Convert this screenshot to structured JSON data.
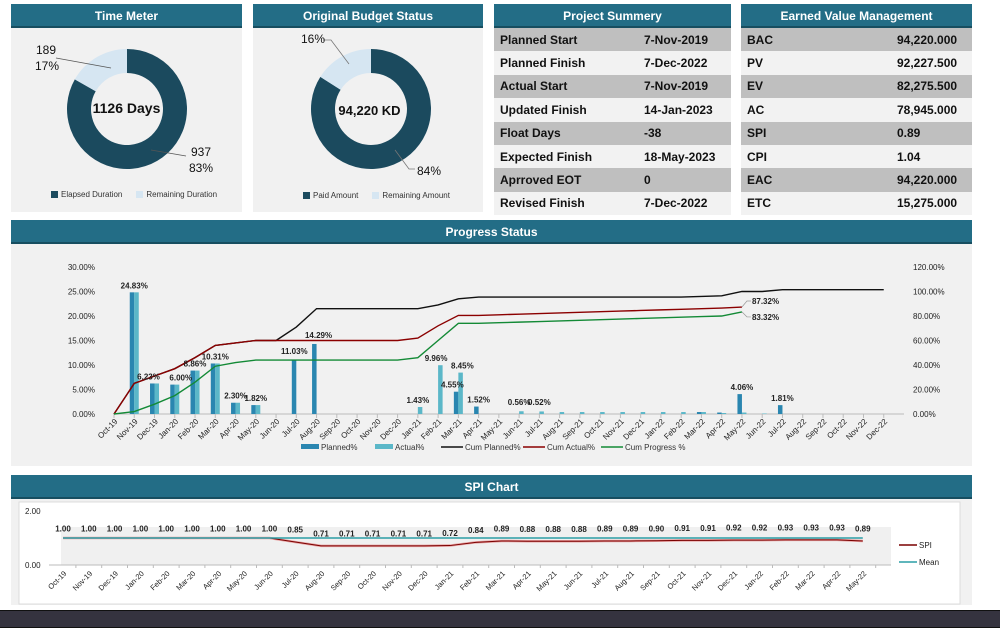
{
  "time_meter": {
    "title": "Time Meter",
    "center_label": "1126 Days",
    "slices": [
      {
        "name": "Elapsed Duration",
        "value": 937,
        "pct": "83%",
        "color": "#1b4a5e"
      },
      {
        "name": "Remaining Duration",
        "value": 189,
        "pct": "17%",
        "color": "#d6e6f2"
      }
    ],
    "label_elapsed_value": "937",
    "label_elapsed_pct": "83%",
    "label_remaining_value": "189",
    "label_remaining_pct": "17%",
    "legend": [
      "Elapsed Duration",
      "Remaining Duration"
    ]
  },
  "budget_status": {
    "title": "Original Budget Status",
    "center_label": "94,220 KD",
    "slices": [
      {
        "name": "Paid Amount",
        "pct_value": 84,
        "pct": "84%",
        "color": "#1b4a5e"
      },
      {
        "name": "Remaining Amount",
        "pct_value": 16,
        "pct": "16%",
        "color": "#d6e6f2"
      }
    ],
    "label_paid_pct": "84%",
    "label_remaining_pct": "16%",
    "legend": [
      "Paid Amount",
      "Remaining Amount"
    ]
  },
  "project_summary": {
    "title": "Project Summery",
    "rows": [
      {
        "label": "Planned Start",
        "value": "7-Nov-2019"
      },
      {
        "label": "Planned Finish",
        "value": "7-Dec-2022"
      },
      {
        "label": "Actual Start",
        "value": "7-Nov-2019"
      },
      {
        "label": "Updated Finish",
        "value": "14-Jan-2023"
      },
      {
        "label": "Float Days",
        "value": "-38"
      },
      {
        "label": "Expected Finish",
        "value": "18-May-2023"
      },
      {
        "label": "Aprroved EOT",
        "value": "0"
      },
      {
        "label": "Revised Finish",
        "value": "7-Dec-2022"
      }
    ]
  },
  "evm": {
    "title": "Earned Value Management",
    "rows": [
      {
        "label": "BAC",
        "value": "94,220.000"
      },
      {
        "label": "PV",
        "value": "92,227.500"
      },
      {
        "label": "EV",
        "value": "82,275.500"
      },
      {
        "label": "AC",
        "value": "78,945.000"
      },
      {
        "label": "SPI",
        "value": "0.89"
      },
      {
        "label": "CPI",
        "value": "1.04"
      },
      {
        "label": "EAC",
        "value": "94,220.000"
      },
      {
        "label": "ETC",
        "value": "15,275.000"
      }
    ]
  },
  "progress": {
    "title": "Progress Status"
  },
  "spi": {
    "title": "SPI Chart"
  },
  "chart_data": [
    {
      "type": "bar",
      "title": "Progress Status",
      "categories": [
        "Oct-19",
        "Nov-19",
        "Dec-19",
        "Jan-20",
        "Feb-20",
        "Mar-20",
        "Apr-20",
        "May-20",
        "Jun-20",
        "Jul-20",
        "Aug-20",
        "Sep-20",
        "Oct-20",
        "Nov-20",
        "Dec-20",
        "Jan-21",
        "Feb-21",
        "Mar-21",
        "Apr-21",
        "May-21",
        "Jun-21",
        "Jul-21",
        "Aug-21",
        "Sep-21",
        "Oct-21",
        "Nov-21",
        "Dec-21",
        "Jan-22",
        "Feb-22",
        "Mar-22",
        "Apr-22",
        "May-22",
        "Jun-22",
        "Jul-22",
        "Aug-22",
        "Sep-22",
        "Oct-22",
        "Nov-22",
        "Dec-22"
      ],
      "y_left": {
        "min": 0,
        "max": 30,
        "ticks": [
          "0.00%",
          "5.00%",
          "10.00%",
          "15.00%",
          "20.00%",
          "25.00%",
          "30.00%"
        ]
      },
      "y_right": {
        "min": 0,
        "max": 120,
        "ticks": [
          "0.00%",
          "20.00%",
          "40.00%",
          "60.00%",
          "80.00%",
          "100.00%",
          "120.00%"
        ]
      },
      "series": [
        {
          "name": "Planned%",
          "type": "bar",
          "axis": "left",
          "color": "#2a86b0",
          "values": [
            0,
            24.83,
            6.23,
            6.0,
            8.86,
            10.31,
            2.3,
            1.82,
            0,
            11.03,
            14.29,
            0,
            0,
            0,
            0,
            0,
            0,
            4.55,
            1.52,
            0,
            0,
            0,
            0,
            0,
            0,
            0,
            0,
            0,
            0,
            0.4,
            0.3,
            4.06,
            0,
            1.81,
            0,
            0,
            0,
            0,
            0
          ]
        },
        {
          "name": "Actual%",
          "type": "bar",
          "axis": "left",
          "color": "#5bb7c8",
          "values": [
            0,
            24.83,
            6.23,
            6.0,
            8.86,
            10.31,
            2.3,
            1.82,
            0,
            0,
            0,
            0,
            0,
            0,
            0,
            1.43,
            9.96,
            8.45,
            0,
            0,
            0.56,
            0.52,
            0.4,
            0.4,
            0.4,
            0.4,
            0.4,
            0.4,
            0.4,
            0.4,
            0.2,
            0.3,
            0.1,
            0,
            0,
            0,
            0,
            0,
            0
          ]
        },
        {
          "name": "Cum Planned%",
          "type": "line",
          "axis": "right",
          "color": "#111111",
          "values": [
            0,
            25,
            31,
            37,
            46,
            56,
            58,
            60,
            60,
            71,
            86,
            86,
            86,
            86,
            86,
            86,
            89,
            94,
            95.5,
            95.5,
            95.5,
            95.5,
            95.5,
            95.5,
            95.5,
            95.5,
            95.5,
            95.5,
            95.5,
            96,
            96.5,
            100,
            100,
            101.5,
            101.5,
            101.5,
            101.5,
            101.5,
            101.5
          ]
        },
        {
          "name": "Cum Actual%",
          "type": "line",
          "axis": "right",
          "color": "#8b0000",
          "values": [
            0,
            25,
            31,
            37,
            46,
            56,
            58,
            60,
            60,
            60,
            60,
            60,
            60,
            60,
            60,
            62,
            72,
            80.5,
            80.5,
            81,
            81.5,
            82,
            82.5,
            83,
            83.5,
            84,
            84.5,
            85,
            85.5,
            86,
            86.5,
            87.32
          ]
        },
        {
          "name": "Cum Progress %",
          "type": "line",
          "axis": "right",
          "color": "#138a36",
          "values": [
            0,
            2,
            8,
            15,
            26,
            39,
            42,
            44,
            44,
            44,
            44,
            44,
            44,
            44,
            44,
            46,
            60,
            74,
            74,
            74.5,
            75,
            75.5,
            76,
            76.5,
            77,
            77.5,
            78,
            78.5,
            79,
            79.5,
            80,
            83.32
          ]
        }
      ],
      "bar_labels": [
        {
          "index": 1,
          "text": "24.83%"
        },
        {
          "index": 2,
          "text": "6.23%"
        },
        {
          "index": 3,
          "text": "6.00%"
        },
        {
          "index": 4,
          "text": "8.86%"
        },
        {
          "index": 5,
          "text": "10.31%"
        },
        {
          "index": 6,
          "text": "2.30%"
        },
        {
          "index": 7,
          "text": "1.82%"
        },
        {
          "index": 9,
          "text": "11.03%"
        },
        {
          "index": 10,
          "text": "14.29%"
        },
        {
          "index": 15,
          "text": "1.43%"
        },
        {
          "index": 16,
          "text": "9.96%"
        },
        {
          "index": 17,
          "text": "8.45%"
        },
        {
          "index": 17,
          "text": "4.55%"
        },
        {
          "index": 18,
          "text": "1.52%"
        },
        {
          "index": 20,
          "text": "0.56%"
        },
        {
          "index": 21,
          "text": "0.52%"
        },
        {
          "index": 31,
          "text": "4.06%"
        },
        {
          "index": 33,
          "text": "1.81%"
        }
      ],
      "line_end_labels": [
        {
          "series": "Cum Actual%",
          "text": "87.32%"
        },
        {
          "series": "Cum Progress %",
          "text": "83.32%"
        }
      ],
      "legend": [
        "Planned%",
        "Actual%",
        "Cum Planned%",
        "Cum Actual%",
        "Cum Progress %"
      ],
      "legend_position": "bottom"
    },
    {
      "type": "line",
      "title": "SPI Chart",
      "categories": [
        "Oct-19",
        "Nov-19",
        "Dec-19",
        "Jan-20",
        "Feb-20",
        "Mar-20",
        "Apr-20",
        "May-20",
        "Jun-20",
        "Jul-20",
        "Aug-20",
        "Sep-20",
        "Oct-20",
        "Nov-20",
        "Dec-20",
        "Jan-21",
        "Feb-21",
        "Mar-21",
        "Apr-21",
        "May-21",
        "Jun-21",
        "Jul-21",
        "Aug-21",
        "Sep-21",
        "Oct-21",
        "Nov-21",
        "Dec-21",
        "Jan-22",
        "Feb-22",
        "Mar-22",
        "Apr-22",
        "May-22"
      ],
      "ylim": [
        0,
        2
      ],
      "y_ticks": [
        "0.00",
        "2.00"
      ],
      "series": [
        {
          "name": "SPI",
          "color": "#7a0000",
          "values": [
            1.0,
            1.0,
            1.0,
            1.0,
            1.0,
            1.0,
            1.0,
            1.0,
            1.0,
            0.85,
            0.71,
            0.71,
            0.71,
            0.71,
            0.71,
            0.72,
            0.84,
            0.89,
            0.88,
            0.88,
            0.88,
            0.89,
            0.89,
            0.9,
            0.91,
            0.91,
            0.92,
            0.92,
            0.93,
            0.93,
            0.93,
            0.89
          ]
        },
        {
          "name": "Mean",
          "color": "#2a9ea6",
          "values": [
            1,
            1,
            1,
            1,
            1,
            1,
            1,
            1,
            1,
            1,
            1,
            1,
            1,
            1,
            1,
            1,
            1,
            1,
            1,
            1,
            1,
            1,
            1,
            1,
            1,
            1,
            1,
            1,
            1,
            1,
            1,
            1
          ]
        }
      ],
      "data_labels": [
        "1.00",
        "1.00",
        "1.00",
        "1.00",
        "1.00",
        "1.00",
        "1.00",
        "1.00",
        "1.00",
        "0.85",
        "0.71",
        "0.71",
        "0.71",
        "0.71",
        "0.71",
        "0.72",
        "0.84",
        "0.89",
        "0.88",
        "0.88",
        "0.88",
        "0.89",
        "0.89",
        "0.90",
        "0.91",
        "0.91",
        "0.92",
        "0.92",
        "0.93",
        "0.93",
        "0.93",
        "0.89"
      ],
      "legend": [
        "SPI",
        "Mean"
      ],
      "legend_position": "right"
    }
  ]
}
